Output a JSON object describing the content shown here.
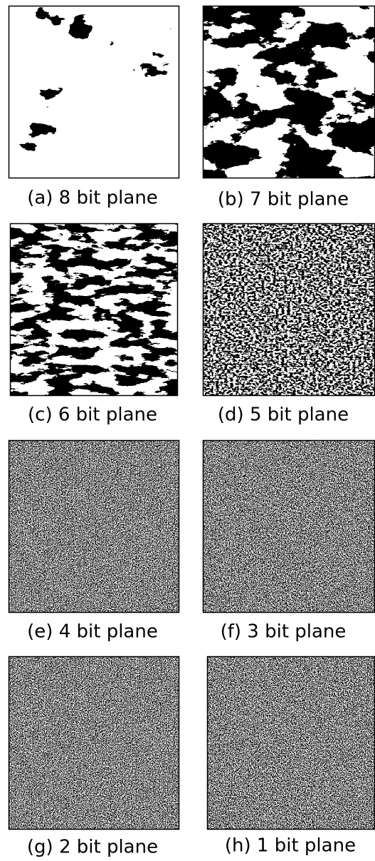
{
  "panels": [
    {
      "caption": "(a) 8 bit plane"
    },
    {
      "caption": "(b) 7 bit plane"
    },
    {
      "caption": "(c) 6 bit plane"
    },
    {
      "caption": "(d) 5 bit plane"
    },
    {
      "caption": "(e) 4 bit plane"
    },
    {
      "caption": "(f) 3 bit plane"
    },
    {
      "caption": "(g) 2 bit plane"
    },
    {
      "caption": "(h) 1 bit plane"
    }
  ]
}
